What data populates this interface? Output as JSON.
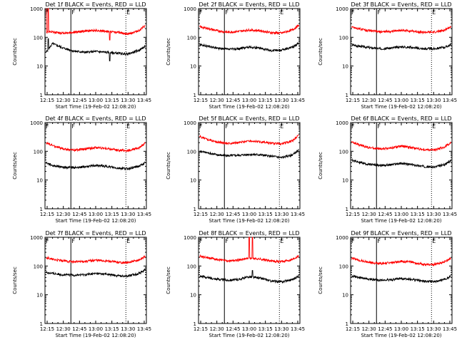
{
  "figure": {
    "xlabel": "Start Time (19-Feb-02 12:08:20)",
    "ylabel": "Counts/sec",
    "xticks": [
      "12:15",
      "12:30",
      "12:45",
      "13:00",
      "13:15",
      "13:30",
      "13:45"
    ],
    "yticks": [
      "1",
      "10",
      "100",
      "1000"
    ],
    "marker_labels": [
      "F",
      "F",
      "E"
    ],
    "colors": {
      "events": "#000000",
      "lld": "#ff0000",
      "background": "#ffffff",
      "axes": "#000000"
    }
  },
  "chart_data": [
    {
      "type": "line",
      "title": "Det 1f BLACK = Events, RED = LLD",
      "xlabel": "Start Time (19-Feb-02 12:08:20)",
      "ylabel": "Counts/sec",
      "y_scale": "log",
      "ylim": [
        1,
        1000
      ],
      "xlim": [
        "12:13",
        "13:47"
      ],
      "series": [
        {
          "name": "Events",
          "color": "#000000",
          "x": [
            "12:14",
            "12:20",
            "12:30",
            "12:40",
            "12:50",
            "13:00",
            "13:10",
            "13:20",
            "13:30",
            "13:40",
            "13:46"
          ],
          "values": [
            30,
            60,
            42,
            33,
            30,
            32,
            30,
            28,
            26,
            35,
            48
          ],
          "spikes": [
            {
              "x": "12:16",
              "value": 90
            },
            {
              "x": "13:13",
              "value": 15
            }
          ]
        },
        {
          "name": "LLD",
          "color": "#ff0000",
          "x": [
            "12:14",
            "12:20",
            "12:30",
            "12:40",
            "12:50",
            "13:00",
            "13:10",
            "13:20",
            "13:30",
            "13:40",
            "13:46"
          ],
          "values": [
            150,
            150,
            140,
            150,
            165,
            175,
            160,
            150,
            130,
            170,
            250
          ],
          "spikes": [
            {
              "x": "12:14",
              "value": 1000
            },
            {
              "x": "12:16",
              "value": 1000
            },
            {
              "x": "13:13",
              "value": 80
            }
          ]
        }
      ],
      "vlines": [
        {
          "x": "12:13",
          "style": "solid",
          "label": "F"
        },
        {
          "x": "12:37",
          "style": "solid",
          "label": "F"
        },
        {
          "x": "13:28",
          "style": "dotted",
          "label": "E"
        }
      ]
    },
    {
      "type": "line",
      "title": "Det 2f BLACK = Events, RED = LLD",
      "xlabel": "Start Time (19-Feb-02 12:08:20)",
      "ylabel": "Counts/sec",
      "y_scale": "log",
      "ylim": [
        1,
        1000
      ],
      "xlim": [
        "12:13",
        "13:47"
      ],
      "series": [
        {
          "name": "Events",
          "color": "#000000",
          "x": [
            "12:14",
            "12:20",
            "12:30",
            "12:40",
            "12:50",
            "13:00",
            "13:10",
            "13:20",
            "13:30",
            "13:40",
            "13:46"
          ],
          "values": [
            55,
            50,
            42,
            38,
            40,
            46,
            42,
            35,
            36,
            45,
            62
          ]
        },
        {
          "name": "LLD",
          "color": "#ff0000",
          "x": [
            "12:14",
            "12:20",
            "12:30",
            "12:40",
            "12:50",
            "13:00",
            "13:10",
            "13:20",
            "13:30",
            "13:40",
            "13:46"
          ],
          "values": [
            230,
            210,
            170,
            150,
            160,
            180,
            170,
            145,
            140,
            180,
            260
          ]
        }
      ],
      "vlines": [
        {
          "x": "12:13",
          "style": "solid",
          "label": "F"
        },
        {
          "x": "12:37",
          "style": "solid",
          "label": "F"
        },
        {
          "x": "13:28",
          "style": "dotted",
          "label": "E"
        }
      ]
    },
    {
      "type": "line",
      "title": "Det 3f BLACK = Events, RED = LLD",
      "xlabel": "Start Time (19-Feb-02 12:08:20)",
      "ylabel": "Counts/sec",
      "y_scale": "log",
      "ylim": [
        1,
        1000
      ],
      "xlim": [
        "12:13",
        "13:47"
      ],
      "series": [
        {
          "name": "Events",
          "color": "#000000",
          "x": [
            "12:14",
            "12:20",
            "12:30",
            "12:40",
            "12:50",
            "13:00",
            "13:10",
            "13:20",
            "13:30",
            "13:40",
            "13:46"
          ],
          "values": [
            55,
            50,
            44,
            40,
            42,
            47,
            44,
            40,
            40,
            45,
            55
          ]
        },
        {
          "name": "LLD",
          "color": "#ff0000",
          "x": [
            "12:14",
            "12:20",
            "12:30",
            "12:40",
            "12:50",
            "13:00",
            "13:10",
            "13:20",
            "13:30",
            "13:40",
            "13:46"
          ],
          "values": [
            230,
            200,
            170,
            155,
            160,
            175,
            165,
            150,
            150,
            175,
            240
          ]
        }
      ],
      "vlines": [
        {
          "x": "12:13",
          "style": "solid",
          "label": "F"
        },
        {
          "x": "12:37",
          "style": "solid",
          "label": "F"
        },
        {
          "x": "13:28",
          "style": "dotted",
          "label": "E"
        }
      ]
    },
    {
      "type": "line",
      "title": "Det 4f BLACK = Events, RED = LLD",
      "xlabel": "Start Time (19-Feb-02 12:08:20)",
      "ylabel": "Counts/sec",
      "y_scale": "log",
      "ylim": [
        1,
        1000
      ],
      "xlim": [
        "12:13",
        "13:47"
      ],
      "series": [
        {
          "name": "Events",
          "color": "#000000",
          "x": [
            "12:14",
            "12:20",
            "12:30",
            "12:40",
            "12:50",
            "13:00",
            "13:10",
            "13:20",
            "13:30",
            "13:40",
            "13:46"
          ],
          "values": [
            40,
            32,
            28,
            27,
            29,
            32,
            30,
            26,
            25,
            30,
            40
          ]
        },
        {
          "name": "LLD",
          "color": "#ff0000",
          "x": [
            "12:14",
            "12:20",
            "12:30",
            "12:40",
            "12:50",
            "13:00",
            "13:10",
            "13:20",
            "13:30",
            "13:40",
            "13:46"
          ],
          "values": [
            200,
            160,
            120,
            110,
            120,
            135,
            125,
            110,
            105,
            130,
            200
          ]
        }
      ],
      "vlines": [
        {
          "x": "12:13",
          "style": "solid",
          "label": "F"
        },
        {
          "x": "12:37",
          "style": "solid",
          "label": "F"
        },
        {
          "x": "13:28",
          "style": "dotted",
          "label": "E"
        }
      ]
    },
    {
      "type": "line",
      "title": "Det 5f BLACK = Events, RED = LLD",
      "xlabel": "Start Time (19-Feb-02 12:08:20)",
      "ylabel": "Counts/sec",
      "y_scale": "log",
      "ylim": [
        1,
        1000
      ],
      "xlim": [
        "12:13",
        "13:47"
      ],
      "series": [
        {
          "name": "Events",
          "color": "#000000",
          "x": [
            "12:14",
            "12:20",
            "12:30",
            "12:40",
            "12:50",
            "13:00",
            "13:10",
            "13:20",
            "13:30",
            "13:40",
            "13:46"
          ],
          "values": [
            100,
            90,
            75,
            70,
            72,
            78,
            75,
            68,
            60,
            75,
            110
          ]
        },
        {
          "name": "LLD",
          "color": "#ff0000",
          "x": [
            "12:14",
            "12:20",
            "12:30",
            "12:40",
            "12:50",
            "13:00",
            "13:10",
            "13:20",
            "13:30",
            "13:40",
            "13:46"
          ],
          "values": [
            330,
            270,
            210,
            190,
            200,
            230,
            210,
            190,
            180,
            230,
            370
          ]
        }
      ],
      "vlines": [
        {
          "x": "12:13",
          "style": "solid",
          "label": "F"
        },
        {
          "x": "12:37",
          "style": "solid",
          "label": "F"
        },
        {
          "x": "13:28",
          "style": "dotted",
          "label": "E"
        }
      ]
    },
    {
      "type": "line",
      "title": "Det 6f BLACK = Events, RED = LLD",
      "xlabel": "Start Time (19-Feb-02 12:08:20)",
      "ylabel": "Counts/sec",
      "y_scale": "log",
      "ylim": [
        1,
        1000
      ],
      "xlim": [
        "12:13",
        "13:47"
      ],
      "series": [
        {
          "name": "Events",
          "color": "#000000",
          "x": [
            "12:14",
            "12:20",
            "12:30",
            "12:40",
            "12:50",
            "13:00",
            "13:10",
            "13:20",
            "13:30",
            "13:40",
            "13:46"
          ],
          "values": [
            50,
            42,
            35,
            32,
            34,
            38,
            34,
            30,
            28,
            34,
            48
          ]
        },
        {
          "name": "LLD",
          "color": "#ff0000",
          "x": [
            "12:14",
            "12:20",
            "12:30",
            "12:40",
            "12:50",
            "13:00",
            "13:10",
            "13:20",
            "13:30",
            "13:40",
            "13:46"
          ],
          "values": [
            210,
            170,
            135,
            120,
            130,
            150,
            135,
            115,
            110,
            140,
            200
          ]
        }
      ],
      "vlines": [
        {
          "x": "12:13",
          "style": "solid",
          "label": "F"
        },
        {
          "x": "12:37",
          "style": "solid",
          "label": "F"
        },
        {
          "x": "13:28",
          "style": "dotted",
          "label": "E"
        }
      ]
    },
    {
      "type": "line",
      "title": "Det 7f BLACK = Events, RED = LLD",
      "xlabel": "Start Time (19-Feb-02 12:08:20)",
      "ylabel": "Counts/sec",
      "y_scale": "log",
      "ylim": [
        1,
        1000
      ],
      "xlim": [
        "12:13",
        "13:47"
      ],
      "series": [
        {
          "name": "Events",
          "color": "#000000",
          "x": [
            "12:14",
            "12:20",
            "12:30",
            "12:40",
            "12:50",
            "13:00",
            "13:10",
            "13:20",
            "13:30",
            "13:40",
            "13:46"
          ],
          "values": [
            60,
            55,
            50,
            48,
            50,
            55,
            52,
            46,
            45,
            55,
            75
          ]
        },
        {
          "name": "LLD",
          "color": "#ff0000",
          "x": [
            "12:14",
            "12:20",
            "12:30",
            "12:40",
            "12:50",
            "13:00",
            "13:10",
            "13:20",
            "13:30",
            "13:40",
            "13:46"
          ],
          "values": [
            200,
            170,
            150,
            140,
            145,
            160,
            150,
            135,
            130,
            160,
            220
          ]
        }
      ],
      "vlines": [
        {
          "x": "12:13",
          "style": "solid",
          "label": "F"
        },
        {
          "x": "12:37",
          "style": "solid",
          "label": "F"
        },
        {
          "x": "13:28",
          "style": "dotted",
          "label": "E"
        }
      ]
    },
    {
      "type": "line",
      "title": "Det 8f BLACK = Events, RED = LLD",
      "xlabel": "Start Time (19-Feb-02 12:08:20)",
      "ylabel": "Counts/sec",
      "y_scale": "log",
      "ylim": [
        1,
        1000
      ],
      "xlim": [
        "12:13",
        "13:47"
      ],
      "series": [
        {
          "name": "Events",
          "color": "#000000",
          "x": [
            "12:14",
            "12:20",
            "12:30",
            "12:40",
            "12:50",
            "13:00",
            "13:10",
            "13:20",
            "13:30",
            "13:40",
            "13:46"
          ],
          "values": [
            45,
            40,
            35,
            32,
            34,
            42,
            38,
            30,
            28,
            34,
            45
          ],
          "spikes": [
            {
              "x": "13:03",
              "value": 70
            }
          ]
        },
        {
          "name": "LLD",
          "color": "#ff0000",
          "x": [
            "12:14",
            "12:20",
            "12:30",
            "12:40",
            "12:50",
            "13:00",
            "13:10",
            "13:20",
            "13:30",
            "13:40",
            "13:46"
          ],
          "values": [
            220,
            200,
            170,
            150,
            160,
            190,
            175,
            150,
            140,
            170,
            230
          ],
          "spikes": [
            {
              "x": "13:00",
              "value": 1000
            },
            {
              "x": "13:03",
              "value": 1000
            }
          ]
        }
      ],
      "vlines": [
        {
          "x": "12:13",
          "style": "solid",
          "label": "F"
        },
        {
          "x": "12:37",
          "style": "solid",
          "label": "F"
        },
        {
          "x": "13:28",
          "style": "dotted",
          "label": "E"
        }
      ]
    },
    {
      "type": "line",
      "title": "Det 9f BLACK = Events, RED = LLD",
      "xlabel": "Start Time (19-Feb-02 12:08:20)",
      "ylabel": "Counts/sec",
      "y_scale": "log",
      "ylim": [
        1,
        1000
      ],
      "xlim": [
        "12:13",
        "13:47"
      ],
      "series": [
        {
          "name": "Events",
          "color": "#000000",
          "x": [
            "12:14",
            "12:20",
            "12:30",
            "12:40",
            "12:50",
            "13:00",
            "13:10",
            "13:20",
            "13:30",
            "13:40",
            "13:46"
          ],
          "values": [
            45,
            40,
            35,
            32,
            33,
            37,
            34,
            30,
            28,
            34,
            45
          ]
        },
        {
          "name": "LLD",
          "color": "#ff0000",
          "x": [
            "12:14",
            "12:20",
            "12:30",
            "12:40",
            "12:50",
            "13:00",
            "13:10",
            "13:20",
            "13:30",
            "13:40",
            "13:46"
          ],
          "values": [
            190,
            160,
            135,
            120,
            130,
            145,
            135,
            115,
            110,
            140,
            190
          ]
        }
      ],
      "vlines": [
        {
          "x": "12:13",
          "style": "solid",
          "label": "F"
        },
        {
          "x": "12:37",
          "style": "solid",
          "label": "F"
        },
        {
          "x": "13:28",
          "style": "dotted",
          "label": "E"
        }
      ]
    }
  ]
}
